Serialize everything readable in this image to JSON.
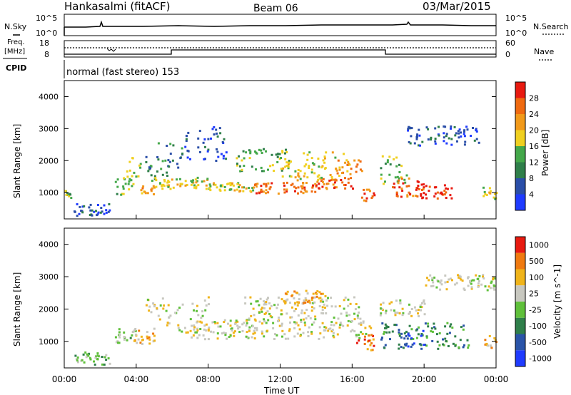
{
  "header": {
    "station": "Hankasalmi (fitACF)",
    "beam": "Beam 06",
    "date": "03/Mar/2015"
  },
  "noise_panel": {
    "left_label": "N.Sky",
    "right_label": "N.Search",
    "left_top_tick": "10^5",
    "left_bottom_tick": "10^0",
    "right_top_tick": "10^5",
    "right_bottom_tick": "10^0"
  },
  "freq_panel": {
    "left_label_1": "Freq.",
    "left_label_2": "[MHz]",
    "right_label": "Nave",
    "left_top_tick": "18",
    "left_bottom_tick": "8",
    "right_top_tick": "60",
    "right_bottom_tick": "0"
  },
  "cpid_panel": {
    "label": "CPID",
    "value": "normal (fast stereo) 153"
  },
  "x_axis": {
    "ticks": [
      "00:00",
      "04:00",
      "08:00",
      "12:00",
      "16:00",
      "20:00",
      "00:00"
    ],
    "title": "Time UT"
  },
  "power_panel": {
    "ylabel": "Slant Range [km]",
    "yticks": [
      "1000",
      "2000",
      "3000",
      "4000"
    ],
    "colorbar_label": "Power [dB]",
    "colorbar_ticks": [
      "4",
      "8",
      "12",
      "16",
      "20",
      "24",
      "28"
    ],
    "colors": [
      "#1f3bff",
      "#2a4ea8",
      "#2f7f4a",
      "#44a84a",
      "#f0d020",
      "#f29a1a",
      "#f06a10",
      "#e81a10"
    ]
  },
  "velocity_panel": {
    "ylabel": "Slant Range [km]",
    "yticks": [
      "1000",
      "2000",
      "3000",
      "4000"
    ],
    "colorbar_label": "Velocity [m s^-1]",
    "colorbar_ticks": [
      "1000",
      "500",
      "100",
      "25",
      "-25",
      "-100",
      "-500",
      "-1000"
    ],
    "colors": [
      "#1f3bff",
      "#2a54a8",
      "#2f7f4a",
      "#5fc03a",
      "#c8c8c0",
      "#f0b41a",
      "#f07a10",
      "#e81a10"
    ]
  },
  "chart_data": {
    "type": "heatmap",
    "x_range_hours": [
      0,
      24
    ],
    "y_range_km": [
      180,
      4500
    ],
    "power_blocks": [
      {
        "t0": 0.0,
        "t1": 0.5,
        "r0": 850,
        "r1": 1100,
        "level": 3
      },
      {
        "t0": 0.5,
        "t1": 2.5,
        "r0": 300,
        "r1": 700,
        "level": 1
      },
      {
        "t0": 2.8,
        "t1": 3.8,
        "r0": 950,
        "r1": 1500,
        "level": 3
      },
      {
        "t0": 3.4,
        "t1": 4.2,
        "r0": 1400,
        "r1": 2200,
        "level": 4
      },
      {
        "t0": 4.2,
        "t1": 5.0,
        "r0": 950,
        "r1": 1250,
        "level": 5
      },
      {
        "t0": 4.5,
        "t1": 6.5,
        "r0": 1400,
        "r1": 2600,
        "level": 2
      },
      {
        "t0": 5.0,
        "t1": 8.0,
        "r0": 1150,
        "r1": 1500,
        "level": 4
      },
      {
        "t0": 6.5,
        "t1": 9.0,
        "r0": 2000,
        "r1": 3100,
        "level": 1
      },
      {
        "t0": 8.0,
        "t1": 10.5,
        "r0": 1050,
        "r1": 1350,
        "level": 4
      },
      {
        "t0": 9.5,
        "t1": 12.5,
        "r0": 1700,
        "r1": 2400,
        "level": 3
      },
      {
        "t0": 10.5,
        "t1": 14.0,
        "r0": 1000,
        "r1": 1350,
        "level": 6
      },
      {
        "t0": 12.0,
        "t1": 15.5,
        "r0": 1400,
        "r1": 2300,
        "level": 4
      },
      {
        "t0": 14.0,
        "t1": 16.0,
        "r0": 1150,
        "r1": 1500,
        "level": 6
      },
      {
        "t0": 15.0,
        "t1": 16.5,
        "r0": 1600,
        "r1": 2100,
        "level": 5
      },
      {
        "t0": 16.5,
        "t1": 17.2,
        "r0": 750,
        "r1": 1150,
        "level": 6
      },
      {
        "t0": 17.5,
        "t1": 19.0,
        "r0": 1300,
        "r1": 2200,
        "level": 3
      },
      {
        "t0": 18.2,
        "t1": 20.0,
        "r0": 900,
        "r1": 1500,
        "level": 6
      },
      {
        "t0": 19.5,
        "t1": 21.5,
        "r0": 850,
        "r1": 1300,
        "level": 7
      },
      {
        "t0": 19.0,
        "t1": 23.0,
        "r0": 2500,
        "r1": 3100,
        "level": 1
      },
      {
        "t0": 23.2,
        "t1": 24.0,
        "r0": 800,
        "r1": 1200,
        "level": 4
      }
    ],
    "velocity_blocks": [
      {
        "t0": 0.5,
        "t1": 2.5,
        "r0": 300,
        "r1": 700,
        "level": 3
      },
      {
        "t0": 2.8,
        "t1": 4.0,
        "r0": 950,
        "r1": 1500,
        "level": 3
      },
      {
        "t0": 3.8,
        "t1": 5.0,
        "r0": 950,
        "r1": 1400,
        "level": 5
      },
      {
        "t0": 4.5,
        "t1": 8.0,
        "r0": 1300,
        "r1": 2400,
        "level": 4
      },
      {
        "t0": 7.0,
        "t1": 17.0,
        "r0": 1100,
        "r1": 1700,
        "level": 4
      },
      {
        "t0": 10.0,
        "t1": 16.5,
        "r0": 1700,
        "r1": 2400,
        "level": 4
      },
      {
        "t0": 12.0,
        "t1": 14.5,
        "r0": 2200,
        "r1": 2600,
        "level": 5
      },
      {
        "t0": 16.2,
        "t1": 17.2,
        "r0": 750,
        "r1": 1250,
        "level": 6
      },
      {
        "t0": 17.5,
        "t1": 22.5,
        "r0": 800,
        "r1": 1600,
        "level": 2
      },
      {
        "t0": 18.5,
        "t1": 20.0,
        "r0": 800,
        "r1": 1400,
        "level": 1
      },
      {
        "t0": 17.5,
        "t1": 20.0,
        "r0": 1800,
        "r1": 2300,
        "level": 4
      },
      {
        "t0": 20.0,
        "t1": 24.0,
        "r0": 2600,
        "r1": 3100,
        "level": 4
      },
      {
        "t0": 23.3,
        "t1": 24.0,
        "r0": 800,
        "r1": 1200,
        "level": 5
      }
    ]
  }
}
